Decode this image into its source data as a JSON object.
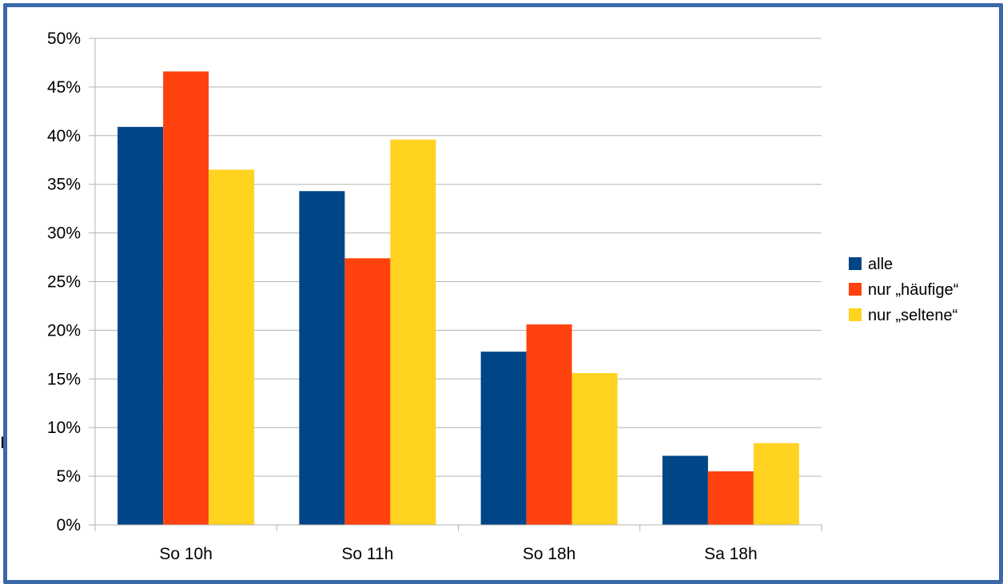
{
  "chart_data": {
    "type": "bar",
    "categories": [
      "So 10h",
      "So 11h",
      "So 18h",
      "Sa 18h"
    ],
    "series": [
      {
        "name": "alle",
        "color": "#004586",
        "values": [
          40.9,
          34.3,
          17.8,
          7.1
        ]
      },
      {
        "name": "nur „häufige“",
        "color": "#ff420e",
        "values": [
          46.6,
          27.4,
          20.6,
          5.5
        ]
      },
      {
        "name": "nur „seltene“",
        "color": "#ffd320",
        "values": [
          36.5,
          39.6,
          15.6,
          8.4
        ]
      }
    ],
    "yticks": [
      "0%",
      "5%",
      "10%",
      "15%",
      "20%",
      "25%",
      "30%",
      "35%",
      "40%",
      "45%",
      "50%"
    ],
    "ylim": [
      0,
      50
    ],
    "y_unit": "%",
    "grid": true,
    "legend_position": "right",
    "frame_color": "#3a68a8"
  },
  "background_fragment": "r"
}
